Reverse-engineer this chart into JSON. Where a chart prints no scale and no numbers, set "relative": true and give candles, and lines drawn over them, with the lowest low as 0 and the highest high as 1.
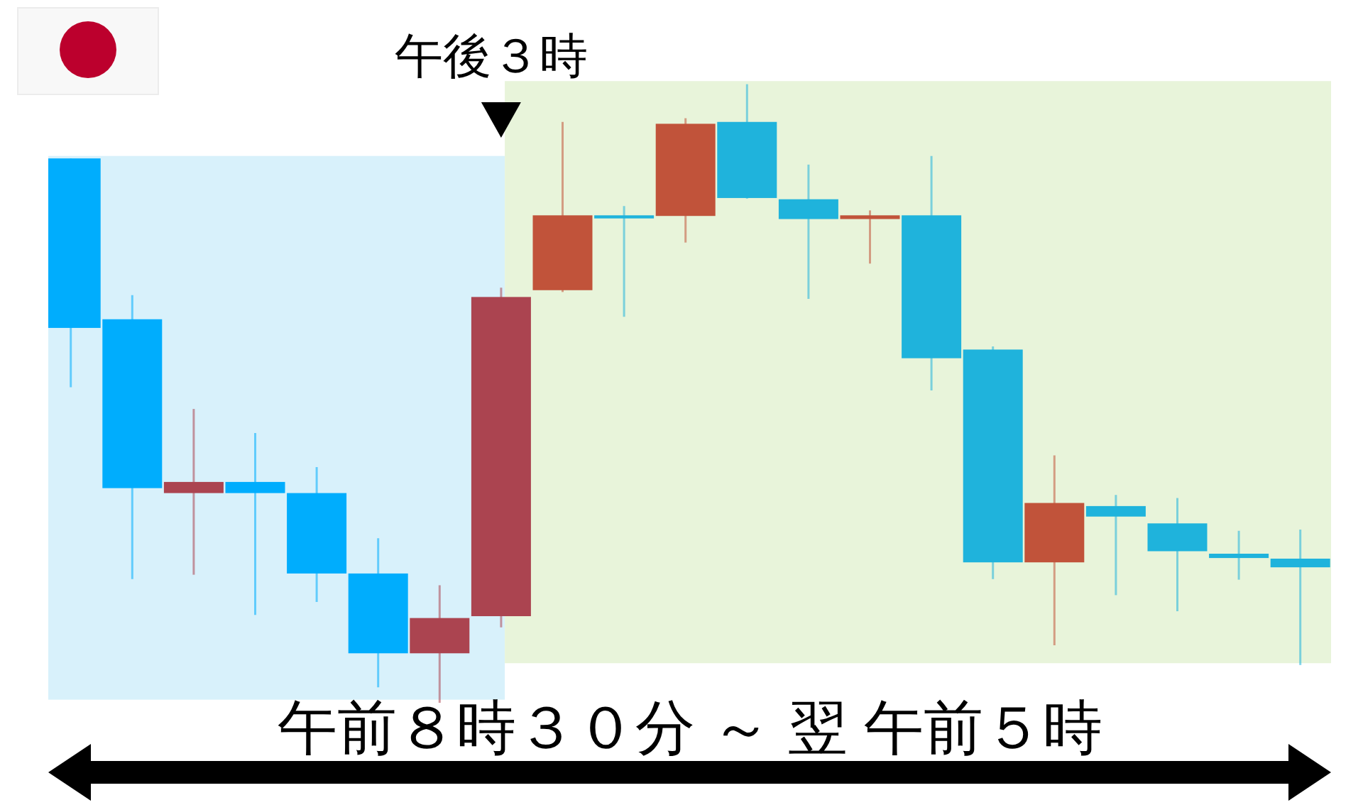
{
  "chart_data": {
    "type": "candlestick",
    "relative": true,
    "categories": [
      null,
      null,
      null,
      null,
      null,
      null,
      null,
      null,
      null,
      null,
      null,
      null,
      null,
      null,
      null,
      null,
      null,
      null,
      null,
      null,
      null
    ],
    "ohlc": [
      [
        0.88,
        0.88,
        0.51,
        0.606
      ],
      [
        0.62,
        0.659,
        0.2,
        0.347
      ],
      [
        0.339,
        0.475,
        0.207,
        0.357
      ],
      [
        0.357,
        0.436,
        0.142,
        0.339
      ],
      [
        0.339,
        0.381,
        0.163,
        0.209
      ],
      [
        0.209,
        0.266,
        0.025,
        0.08
      ],
      [
        0.08,
        0.19,
        0,
        0.137
      ],
      [
        0.14,
        0.671,
        0.122,
        0.656
      ],
      [
        0.667,
        0.939,
        0.664,
        0.788
      ],
      [
        0.788,
        0.803,
        0.624,
        0.783
      ],
      [
        0.787,
        0.945,
        0.744,
        0.936
      ],
      [
        0.939,
        1,
        0.815,
        0.816
      ],
      [
        0.814,
        0.87,
        0.653,
        0.782
      ],
      [
        0.782,
        0.796,
        0.71,
        0.788
      ],
      [
        0.788,
        0.884,
        0.505,
        0.557
      ],
      [
        0.571,
        0.576,
        0.2,
        0.227
      ],
      [
        0.227,
        0.4,
        0.093,
        0.323
      ],
      [
        0.318,
        0.336,
        0.174,
        0.301
      ],
      [
        0.29,
        0.331,
        0.148,
        0.245
      ],
      [
        0.241,
        0.278,
        0.199,
        0.234
      ],
      [
        0.233,
        0.28,
        0.061,
        0.219
      ]
    ],
    "colors": [
      "#00adfd",
      "#00adfd",
      "#ab4450",
      "#00adfd",
      "#00adfd",
      "#00adfd",
      "#ab4450",
      "#ab4450",
      "#c1533a",
      "#1fb3dc",
      "#c1533a",
      "#1fb3dc",
      "#1fb3dc",
      "#c1533a",
      "#1fb3dc",
      "#1fb3dc",
      "#c1533a",
      "#1fb3dc",
      "#1fb3dc",
      "#1fb3dc",
      "#1fb3dc"
    ],
    "annotations": [
      "午後３時",
      "午前８時３０分 ～ 翌 午前５時"
    ]
  }
}
